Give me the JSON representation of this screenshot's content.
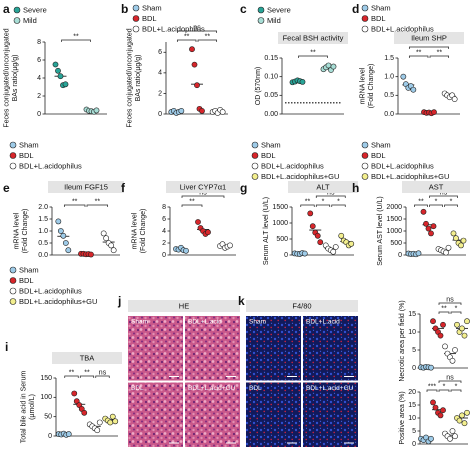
{
  "chart_data": [
    {
      "type": "dot",
      "label": "a",
      "y_label": [
        "Feces conjugated/unconjugated",
        "BAs ratio(µg/g)"
      ],
      "categories": [
        "Severe",
        "Mild"
      ],
      "colors": [
        "#28a497",
        "#a8ded6"
      ],
      "legend": true,
      "points": [
        [
          5.5,
          4.8,
          4.2,
          3.2,
          3.3
        ],
        [
          0.5,
          0.35,
          0.3,
          0.25,
          0.4
        ]
      ],
      "means": [
        4.2,
        0.36
      ],
      "ylim": [
        0,
        8
      ],
      "yticks": [
        0,
        2,
        4,
        6,
        8
      ],
      "comparisons": [
        {
          "groups": [
            0,
            1
          ],
          "label": "**"
        }
      ]
    },
    {
      "type": "dot",
      "label": "b",
      "y_label": [
        "Feces conjugated/unconjugated",
        "BAs ratio(µg/g)"
      ],
      "categories": [
        "Sham",
        "BDL",
        "BDL+L.acidophilus"
      ],
      "colors": [
        "#9ecbe8",
        "#d7262b",
        "#ffffff"
      ],
      "legend": true,
      "points": [
        [
          0.2,
          0.3,
          0.1,
          0.2,
          0.3
        ],
        [
          6.3,
          4.8,
          2.8,
          0.5,
          0.3
        ],
        [
          0.2,
          0.3,
          0.1,
          0.4,
          0.2
        ]
      ],
      "means": [
        0.2,
        2.9,
        0.2
      ],
      "ylim": [
        0,
        7
      ],
      "yticks": [
        0,
        2,
        4,
        6
      ],
      "comparisons": [
        {
          "groups": [
            0,
            2
          ],
          "label": "ns"
        },
        {
          "groups": [
            0,
            1
          ],
          "label": "**"
        },
        {
          "groups": [
            1,
            2
          ],
          "label": "**"
        }
      ]
    },
    {
      "type": "dot",
      "label": "c",
      "title": "Fecal BSH activity",
      "y_label": [
        "OD (570nm)"
      ],
      "categories": [
        "Severe",
        "Mild"
      ],
      "colors": [
        "#28a497",
        "#a8ded6"
      ],
      "legend": true,
      "points": [
        [
          0.085,
          0.087,
          0.09,
          0.088,
          0.086
        ],
        [
          0.12,
          0.125,
          0.13,
          0.118,
          0.127
        ]
      ],
      "means": [
        0.087,
        0.124
      ],
      "ylim": [
        0,
        0.15
      ],
      "yticks": [
        {
          "value": 0,
          "label": "0.00"
        },
        0.05,
        {
          "value": 0.1,
          "label": "0.10"
        },
        0.15
      ],
      "reference_line": 0.03,
      "comparisons": [
        {
          "groups": [
            0,
            1
          ],
          "label": "**"
        }
      ]
    },
    {
      "type": "dot",
      "label": "d",
      "title": "Ileum SHP",
      "y_label": [
        "mRNA level",
        "(Fold Change)"
      ],
      "categories": [
        "Sham",
        "BDL",
        "BDL+L.acidophilus"
      ],
      "colors": [
        "#9ecbe8",
        "#d7262b",
        "#ffffff"
      ],
      "legend": true,
      "points": [
        [
          1.0,
          0.8,
          0.7,
          0.75,
          0.65
        ],
        [
          0.05,
          0.03,
          0.04,
          0.02,
          0.05
        ],
        [
          0.55,
          0.5,
          0.45,
          0.5,
          0.4
        ]
      ],
      "means": [
        0.78,
        0.04,
        0.48
      ],
      "ylim": [
        0,
        1.5
      ],
      "yticks": [
        {
          "value": 0,
          "label": "0.0"
        },
        0.5,
        {
          "value": 1,
          "label": "1.0"
        },
        1.5
      ],
      "comparisons": [
        {
          "groups": [
            0,
            2
          ],
          "label": "*"
        },
        {
          "groups": [
            0,
            1
          ],
          "label": "**"
        },
        {
          "groups": [
            1,
            2
          ],
          "label": "**"
        }
      ]
    },
    {
      "type": "dot",
      "label": "e",
      "title": "Ileum FGF15",
      "y_label": [
        "mRNA level",
        "(Fold Change)"
      ],
      "categories": [
        "Sham",
        "BDL",
        "BDL+L.acidophilus"
      ],
      "colors": [
        "#9ecbe8",
        "#d7262b",
        "#ffffff"
      ],
      "legend": true,
      "points": [
        [
          1.4,
          1.0,
          0.8,
          0.5,
          0.2
        ],
        [
          0.05,
          0.05,
          0.03,
          0.04,
          0.02
        ],
        [
          0.9,
          0.7,
          0.5,
          0.4,
          0.2
        ]
      ],
      "means": [
        0.78,
        0.04,
        0.54
      ],
      "ylim": [
        0,
        2
      ],
      "yticks": [
        {
          "value": 0,
          "label": "0.0"
        },
        0.5,
        {
          "value": 1,
          "label": "1.0"
        },
        1.5,
        {
          "value": 2,
          "label": "2.0"
        }
      ],
      "comparisons": [
        {
          "groups": [
            0,
            1
          ],
          "label": "**"
        },
        {
          "groups": [
            1,
            2
          ],
          "label": "**"
        }
      ]
    },
    {
      "type": "dot",
      "label": "f",
      "title": "Liver CYP7α1",
      "y_label": [
        "mRNA level",
        "(Fold Change)"
      ],
      "colors": [
        "#9ecbe8",
        "#d7262b",
        "#ffffff"
      ],
      "legend": false,
      "points": [
        [
          1.0,
          0.9,
          1.2,
          0.8,
          0.7
        ],
        [
          5.5,
          4.5,
          4.0,
          3.5,
          3.8
        ],
        [
          1.5,
          1.8,
          1.2,
          1.4,
          1.6
        ]
      ],
      "means": [
        0.92,
        4.26,
        1.5
      ],
      "ylim": [
        0,
        8
      ],
      "yticks": [
        0,
        2,
        4,
        6,
        8
      ],
      "comparisons": [
        {
          "groups": [
            0,
            2
          ],
          "label": "ns"
        },
        {
          "groups": [
            0,
            1
          ],
          "label": "**"
        }
      ]
    },
    {
      "type": "dot",
      "label": "g",
      "title": "ALT",
      "y_label": [
        "Serum ALT level (U/L)"
      ],
      "categories": [
        "Sham",
        "BDL",
        "BDL+L.acidophilus",
        "BDL+L.acidophilus+GU"
      ],
      "colors": [
        "#9ecbe8",
        "#d7262b",
        "#ffffff",
        "#f3ef8f"
      ],
      "legend": true,
      "points": [
        [
          50,
          40,
          30,
          60,
          45
        ],
        [
          1300,
          900,
          700,
          600,
          400
        ],
        [
          300,
          200,
          150,
          100,
          250
        ],
        [
          600,
          450,
          400,
          300,
          350
        ]
      ],
      "means": [
        45,
        780,
        200,
        420
      ],
      "ylim": [
        0,
        1500
      ],
      "yticks": [
        0,
        500,
        1000,
        1500
      ],
      "comparisons": [
        {
          "groups": [
            1,
            3
          ],
          "label": "ns"
        },
        {
          "groups": [
            0,
            1
          ],
          "label": "**"
        },
        {
          "groups": [
            1,
            2
          ],
          "label": "*"
        },
        {
          "groups": [
            2,
            3
          ],
          "label": "*"
        }
      ]
    },
    {
      "type": "dot",
      "label": "h",
      "title": "AST",
      "y_label": [
        "Serum AST level (U/L)"
      ],
      "categories": [
        "Sham",
        "BDL",
        "BDL+L.acidophilus",
        "BDL+L.acidophilus+GU"
      ],
      "colors": [
        "#9ecbe8",
        "#d7262b",
        "#ffffff",
        "#f3ef8f"
      ],
      "legend": true,
      "points": [
        [
          60,
          40,
          50,
          30,
          70
        ],
        [
          1800,
          1300,
          1100,
          900,
          1200
        ],
        [
          250,
          200,
          150,
          100,
          300
        ],
        [
          900,
          700,
          500,
          400,
          600
        ]
      ],
      "means": [
        50,
        1260,
        200,
        620
      ],
      "ylim": [
        0,
        2000
      ],
      "yticks": [
        0,
        500,
        1000,
        1500,
        2000
      ],
      "comparisons": [
        {
          "groups": [
            1,
            3
          ],
          "label": "ns"
        },
        {
          "groups": [
            0,
            1
          ],
          "label": "**"
        },
        {
          "groups": [
            1,
            2
          ],
          "label": "*"
        },
        {
          "groups": [
            2,
            3
          ],
          "label": "*"
        }
      ]
    },
    {
      "type": "dot",
      "label": "i",
      "title": "TBA",
      "y_label": [
        "Total bile acid in Serum",
        "(µmol/L)"
      ],
      "categories": [
        "Sham",
        "BDL",
        "BDL+L.acidophilus",
        "BDL+L.acidophilus+GU"
      ],
      "colors": [
        "#9ecbe8",
        "#d7262b",
        "#ffffff",
        "#f3ef8f"
      ],
      "legend": true,
      "points": [
        [
          5,
          4,
          6,
          3,
          5
        ],
        [
          110,
          90,
          80,
          70,
          60
        ],
        [
          30,
          25,
          20,
          15,
          35
        ],
        [
          45,
          40,
          35,
          50,
          38
        ]
      ],
      "means": [
        4.6,
        82,
        25,
        42
      ],
      "ylim": [
        0,
        150
      ],
      "yticks": [
        0,
        50,
        100,
        150
      ],
      "comparisons": [
        {
          "groups": [
            0,
            1
          ],
          "label": "**"
        },
        {
          "groups": [
            1,
            2
          ],
          "label": "**"
        },
        {
          "groups": [
            2,
            3
          ],
          "label": "ns"
        }
      ]
    },
    {
      "type": "image",
      "label": "j",
      "title": "HE",
      "stain": "he",
      "tiles": [
        "Sham",
        "BDL+L.acid",
        "BDL",
        "BDL+L.acid+GU"
      ]
    },
    {
      "type": "image",
      "label": "k",
      "title": "F4/80",
      "stain": "if",
      "tiles": [
        "Sham",
        "BDL+L.acid",
        "BDL",
        "BDL+L.acid+GU"
      ]
    },
    {
      "type": "dot",
      "y_label": [
        "Necrotic area per field (%)"
      ],
      "colors": [
        "#9ecbe8",
        "#d7262b",
        "#ffffff",
        "#f3ef8f"
      ],
      "legend": false,
      "points": [
        [
          0.2,
          0.1,
          0.3,
          0.2,
          0.1
        ],
        [
          13,
          11,
          10,
          9,
          12
        ],
        [
          6,
          4,
          3,
          2,
          5
        ],
        [
          12,
          10,
          11,
          9,
          13
        ]
      ],
      "means": [
        0.18,
        11,
        4,
        11
      ],
      "ylim": [
        0,
        15
      ],
      "yticks": [
        0,
        5,
        10,
        15
      ],
      "comparisons": [
        {
          "groups": [
            1,
            3
          ],
          "label": "ns"
        },
        {
          "groups": [
            1,
            2
          ],
          "label": "**"
        },
        {
          "groups": [
            2,
            3
          ],
          "label": "*"
        }
      ]
    },
    {
      "type": "dot",
      "y_label": [
        "Positive area (%)"
      ],
      "colors": [
        "#9ecbe8",
        "#d7262b",
        "#ffffff",
        "#f3ef8f"
      ],
      "legend": false,
      "points": [
        [
          2,
          1.5,
          2.5,
          1,
          2
        ],
        [
          16,
          14,
          12,
          11,
          13
        ],
        [
          4,
          3,
          2,
          5,
          3
        ],
        [
          10,
          9,
          11,
          8,
          12
        ]
      ],
      "means": [
        1.8,
        13.2,
        3.4,
        10
      ],
      "ylim": [
        0,
        20
      ],
      "yticks": [
        0,
        5,
        10,
        15,
        20
      ],
      "comparisons": [
        {
          "groups": [
            1,
            3
          ],
          "label": "ns"
        },
        {
          "groups": [
            0,
            1
          ],
          "label": "***"
        },
        {
          "groups": [
            1,
            2
          ],
          "label": "*"
        },
        {
          "groups": [
            2,
            3
          ],
          "label": "*"
        }
      ]
    }
  ]
}
